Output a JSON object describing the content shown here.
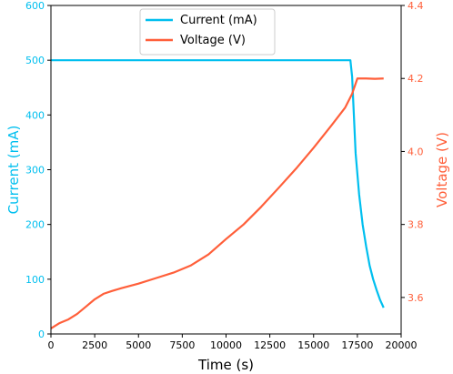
{
  "chart_data": {
    "type": "line",
    "title": "",
    "xlabel": "Time (s)",
    "y_left_label": "Current (mA)",
    "y_right_label": "Voltage (V)",
    "xlim": [
      0,
      20000
    ],
    "y_left_lim": [
      0,
      600
    ],
    "y_right_lim": [
      3.5,
      4.4
    ],
    "x_ticks": [
      0,
      2500,
      5000,
      7500,
      10000,
      12500,
      15000,
      17500,
      20000
    ],
    "y_left_ticks": [
      0,
      100,
      200,
      300,
      400,
      500,
      600
    ],
    "y_right_ticks": [
      3.6,
      3.8,
      4.0,
      4.2,
      4.4
    ],
    "y_right_tick_labels": [
      "3.6",
      "3.8",
      "4.0",
      "4.2",
      "4.4"
    ],
    "legend_position": "top-center",
    "grid": false,
    "series": [
      {
        "name": "Current (mA)",
        "axis": "left",
        "color": "#00bfef",
        "x": [
          0,
          2000,
          4000,
          6000,
          8000,
          10000,
          12000,
          14000,
          16000,
          17100,
          17200,
          17300,
          17400,
          17600,
          17800,
          18000,
          18200,
          18400,
          18600,
          18800,
          19000
        ],
        "y": [
          500,
          500,
          500,
          500,
          500,
          500,
          500,
          500,
          500,
          500,
          470,
          400,
          330,
          255,
          200,
          160,
          125,
          100,
          80,
          62,
          48
        ]
      },
      {
        "name": "Voltage (V)",
        "axis": "right",
        "color": "#ff5f3a",
        "x": [
          0,
          500,
          1000,
          1500,
          2000,
          2500,
          3000,
          3500,
          4000,
          5000,
          6000,
          7000,
          8000,
          9000,
          10000,
          11000,
          12000,
          13000,
          14000,
          15000,
          16000,
          16800,
          17200,
          17500,
          18000,
          18500,
          19000
        ],
        "y": [
          3.515,
          3.53,
          3.54,
          3.555,
          3.575,
          3.595,
          3.61,
          3.618,
          3.625,
          3.638,
          3.653,
          3.668,
          3.688,
          3.718,
          3.76,
          3.8,
          3.848,
          3.9,
          3.953,
          4.01,
          4.07,
          4.12,
          4.158,
          4.2,
          4.2,
          4.199,
          4.2
        ]
      }
    ]
  }
}
